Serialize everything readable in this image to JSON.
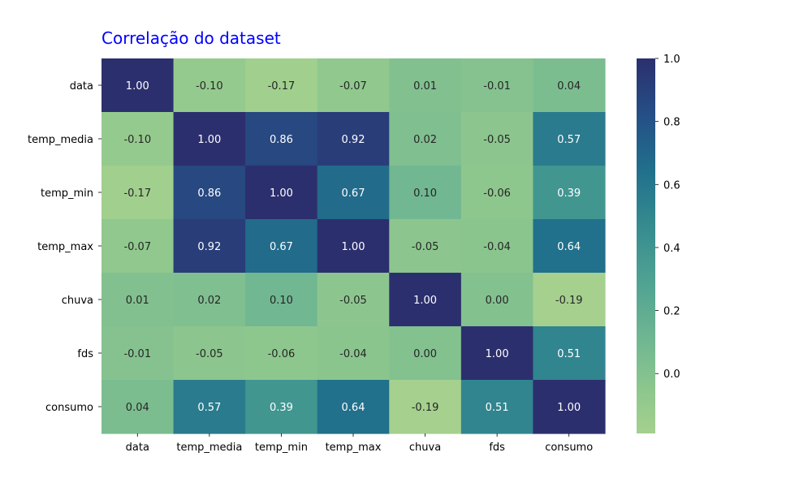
{
  "chart_data": {
    "type": "heatmap",
    "title": "Correlação do dataset",
    "title_color": "#0000ff",
    "rows": [
      "data",
      "temp_media",
      "temp_min",
      "temp_max",
      "chuva",
      "fds",
      "consumo"
    ],
    "columns": [
      "data",
      "temp_media",
      "temp_min",
      "temp_max",
      "chuva",
      "fds",
      "consumo"
    ],
    "values": [
      [
        1.0,
        -0.1,
        -0.17,
        -0.07,
        0.01,
        -0.01,
        0.04
      ],
      [
        -0.1,
        1.0,
        0.86,
        0.92,
        0.02,
        -0.05,
        0.57
      ],
      [
        -0.17,
        0.86,
        1.0,
        0.67,
        0.1,
        -0.06,
        0.39
      ],
      [
        -0.07,
        0.92,
        0.67,
        1.0,
        -0.05,
        -0.04,
        0.64
      ],
      [
        0.01,
        0.02,
        0.1,
        -0.05,
        1.0,
        0.0,
        -0.19
      ],
      [
        -0.01,
        -0.05,
        -0.06,
        -0.04,
        0.0,
        1.0,
        0.51
      ],
      [
        0.04,
        0.57,
        0.39,
        0.64,
        -0.19,
        0.51,
        1.0
      ]
    ],
    "value_labels": [
      [
        "1.00",
        "-0.10",
        "-0.17",
        "-0.07",
        "0.01",
        "-0.01",
        "0.04"
      ],
      [
        "-0.10",
        "1.00",
        "0.86",
        "0.92",
        "0.02",
        "-0.05",
        "0.57"
      ],
      [
        "-0.17",
        "0.86",
        "1.00",
        "0.67",
        "0.10",
        "-0.06",
        "0.39"
      ],
      [
        "-0.07",
        "0.92",
        "0.67",
        "1.00",
        "-0.05",
        "-0.04",
        "0.64"
      ],
      [
        "0.01",
        "0.02",
        "0.10",
        "-0.05",
        "1.00",
        "0.00",
        "-0.19"
      ],
      [
        "-0.01",
        "-0.05",
        "-0.06",
        "-0.04",
        "0.00",
        "1.00",
        "0.51"
      ],
      [
        "0.04",
        "0.57",
        "0.39",
        "0.64",
        "-0.19",
        "0.51",
        "1.00"
      ]
    ],
    "colormap": "crest",
    "vmin": -0.19,
    "vmax": 1.0,
    "colorbar": {
      "ticks": [
        0.0,
        0.2,
        0.4,
        0.6,
        0.8,
        1.0
      ],
      "tick_labels": [
        "0.0",
        "0.2",
        "0.4",
        "0.6",
        "0.8",
        "1.0"
      ],
      "placement": "right"
    },
    "grid": false
  }
}
